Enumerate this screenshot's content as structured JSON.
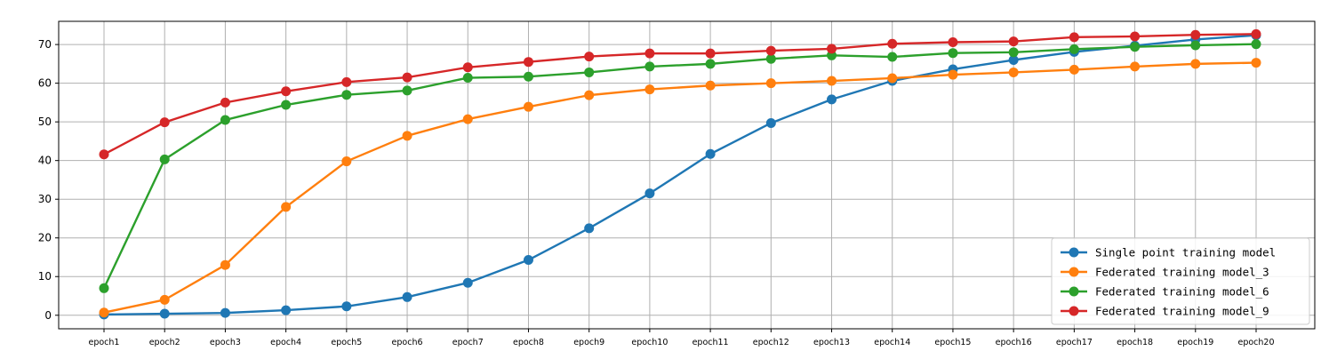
{
  "chart_data": {
    "type": "line",
    "title": "",
    "xlabel": "",
    "ylabel": "",
    "categories": [
      "epoch1",
      "epoch2",
      "epoch3",
      "epoch4",
      "epoch5",
      "epoch6",
      "epoch7",
      "epoch8",
      "epoch9",
      "epoch10",
      "epoch11",
      "epoch12",
      "epoch13",
      "epoch14",
      "epoch15",
      "epoch16",
      "epoch17",
      "epoch18",
      "epoch19",
      "epoch20"
    ],
    "ylim": [
      -3.5,
      76
    ],
    "yticks": [
      0,
      10,
      20,
      30,
      40,
      50,
      60,
      70
    ],
    "grid": true,
    "legend_position": "lower-right",
    "series": [
      {
        "name": "Single point training model",
        "color": "#1f77b4",
        "values": [
          0.2,
          0.4,
          0.6,
          1.3,
          2.3,
          4.7,
          8.4,
          14.3,
          22.5,
          31.5,
          41.7,
          49.7,
          55.8,
          60.6,
          63.6,
          66.0,
          68.1,
          69.7,
          71.3,
          72.4
        ]
      },
      {
        "name": "Federated training model_3",
        "color": "#ff7f0e",
        "values": [
          0.7,
          4.0,
          13.0,
          28.0,
          39.8,
          46.4,
          50.7,
          53.9,
          56.9,
          58.4,
          59.4,
          60.0,
          60.6,
          61.3,
          62.2,
          62.8,
          63.5,
          64.3,
          65.0,
          65.3
        ]
      },
      {
        "name": "Federated training model_6",
        "color": "#2ca02c",
        "values": [
          7.0,
          40.3,
          50.5,
          54.4,
          57.0,
          58.1,
          61.4,
          61.7,
          62.8,
          64.3,
          65.0,
          66.3,
          67.2,
          66.8,
          67.8,
          68.0,
          68.8,
          69.4,
          69.8,
          70.1
        ]
      },
      {
        "name": "Federated training model_9",
        "color": "#d62728",
        "values": [
          41.6,
          49.9,
          55.0,
          57.9,
          60.3,
          61.5,
          64.1,
          65.5,
          66.9,
          67.7,
          67.7,
          68.4,
          68.9,
          70.2,
          70.6,
          70.8,
          71.9,
          72.1,
          72.5,
          72.7
        ]
      }
    ]
  }
}
